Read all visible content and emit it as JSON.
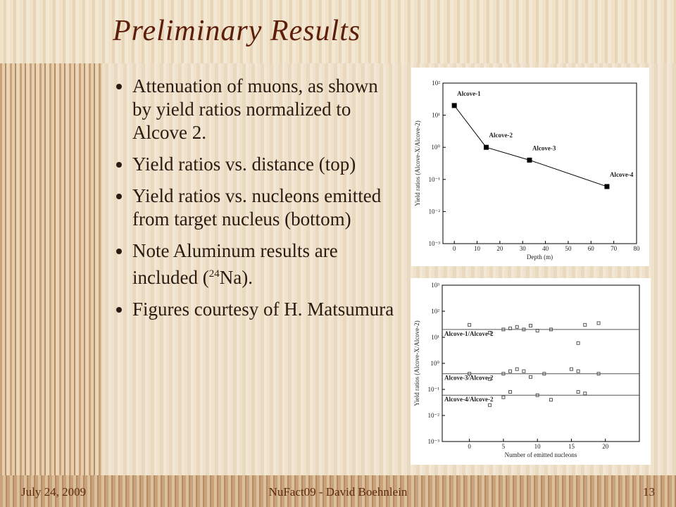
{
  "slide": {
    "title": "Preliminary Results",
    "bullets": [
      {
        "text": "Attenuation of muons, as shown by yield ratios normalized to Alcove 2."
      },
      {
        "text": "Yield ratios vs. distance (top)"
      },
      {
        "text": "Yield ratios vs. nucleons emitted from target nucleus (bottom)"
      },
      {
        "text": "Note Aluminum results are included (",
        "sup": "24",
        "after": "Na)."
      },
      {
        "text": "Figures courtesy of H. Matsumura"
      }
    ],
    "footer": {
      "date": "July 24, 2009",
      "center": "NuFact09 - David Boehnlein",
      "page": "13"
    }
  },
  "figures": [
    {
      "type": "line",
      "xlabel": "Depth (m)",
      "ylabel": "Yield ratios (Alcove-X/Alcove-2)",
      "log_y": true,
      "xlim": [
        -5,
        80
      ],
      "xticks": [
        0,
        10,
        20,
        30,
        40,
        50,
        60,
        70,
        80
      ],
      "ylim": [
        0.001,
        100
      ],
      "yticks": [
        {
          "value": 100,
          "label": "10²"
        },
        {
          "value": 10,
          "label": "10¹"
        },
        {
          "value": 1,
          "label": "10⁰"
        },
        {
          "value": 0.1,
          "label": "10⁻¹"
        },
        {
          "value": 0.01,
          "label": "10⁻²"
        },
        {
          "value": 0.001,
          "label": "10⁻³"
        }
      ],
      "x": [
        0,
        14,
        33,
        67
      ],
      "values": [
        20,
        1,
        0.4,
        0.06
      ],
      "point_labels": [
        "Alcove-1",
        "Alcove-2",
        "Alcove-3",
        "Alcove-4"
      ],
      "color": "#000000"
    },
    {
      "type": "scatter",
      "xlabel": "Number of emitted nucleons",
      "ylabel": "Yield ratios (Alcove-X/Alcove-2)",
      "log_y": true,
      "xlim": [
        -4,
        25
      ],
      "xticks": [
        0,
        5,
        10,
        15,
        20
      ],
      "ylim": [
        0.001,
        1000
      ],
      "yticks": [
        {
          "value": 1000,
          "label": "10³"
        },
        {
          "value": 100,
          "label": "10²"
        },
        {
          "value": 10,
          "label": "10¹"
        },
        {
          "value": 1,
          "label": "10⁰"
        },
        {
          "value": 0.1,
          "label": "10⁻¹"
        },
        {
          "value": 0.01,
          "label": "10⁻²"
        },
        {
          "value": 0.001,
          "label": "10⁻³"
        }
      ],
      "series": [
        {
          "name": "Alcove-1/Alcove-2",
          "color": "#555555",
          "ref": 20,
          "x": [
            0,
            3,
            5,
            6,
            7,
            8,
            9,
            10,
            12,
            16,
            17,
            19
          ],
          "values": [
            30,
            15,
            20,
            22,
            25,
            20,
            28,
            18,
            20,
            6,
            30,
            35
          ]
        },
        {
          "name": "Alcove-3/Alcove-2",
          "color": "#555555",
          "ref": 0.4,
          "x": [
            0,
            3,
            5,
            6,
            7,
            8,
            9,
            11,
            15,
            16,
            19
          ],
          "values": [
            0.4,
            0.25,
            0.4,
            0.5,
            0.6,
            0.5,
            0.3,
            0.4,
            0.6,
            0.5,
            0.4
          ]
        },
        {
          "name": "Alcove-4/Alcove-2",
          "color": "#555555",
          "ref": 0.06,
          "x": [
            3,
            5,
            6,
            10,
            12,
            16,
            17
          ],
          "values": [
            0.025,
            0.05,
            0.08,
            0.06,
            0.04,
            0.08,
            0.07
          ]
        }
      ]
    }
  ]
}
